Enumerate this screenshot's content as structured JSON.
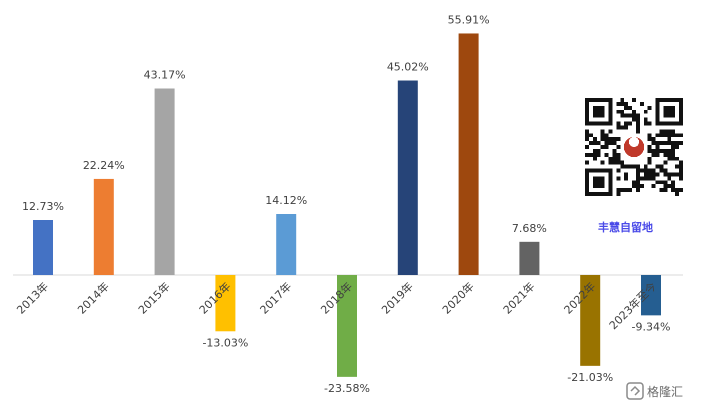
{
  "chart_data": {
    "type": "bar",
    "categories": [
      "2013年",
      "2014年",
      "2015年",
      "2016年",
      "2017年",
      "2018年",
      "2019年",
      "2020年",
      "2021年",
      "2022年",
      "2023年至今"
    ],
    "values": [
      12.73,
      22.24,
      43.17,
      -13.03,
      14.12,
      -23.58,
      45.02,
      55.91,
      7.68,
      -21.03,
      -9.34
    ],
    "data_labels": [
      "12.73%",
      "22.24%",
      "43.17%",
      "-13.03%",
      "14.12%",
      "-23.58%",
      "45.02%",
      "55.91%",
      "7.68%",
      "-21.03%",
      "-9.34%"
    ],
    "colors": [
      "#4472c4",
      "#ed7d31",
      "#a5a5a5",
      "#ffc000",
      "#5b9bd5",
      "#70ad47",
      "#264478",
      "#9e480e",
      "#636363",
      "#997300",
      "#255e91"
    ],
    "ylim": [
      -30,
      60
    ],
    "grid": false,
    "legend": "none",
    "title": "",
    "xlabel": "",
    "ylabel": ""
  },
  "watermark": {
    "text": "丰慧自留地",
    "color": "#4a4ae8"
  },
  "qr_code": {
    "icon": "qr-code-icon"
  },
  "brand": {
    "name": "格隆汇",
    "icon": "gelonghui-logo-icon"
  }
}
